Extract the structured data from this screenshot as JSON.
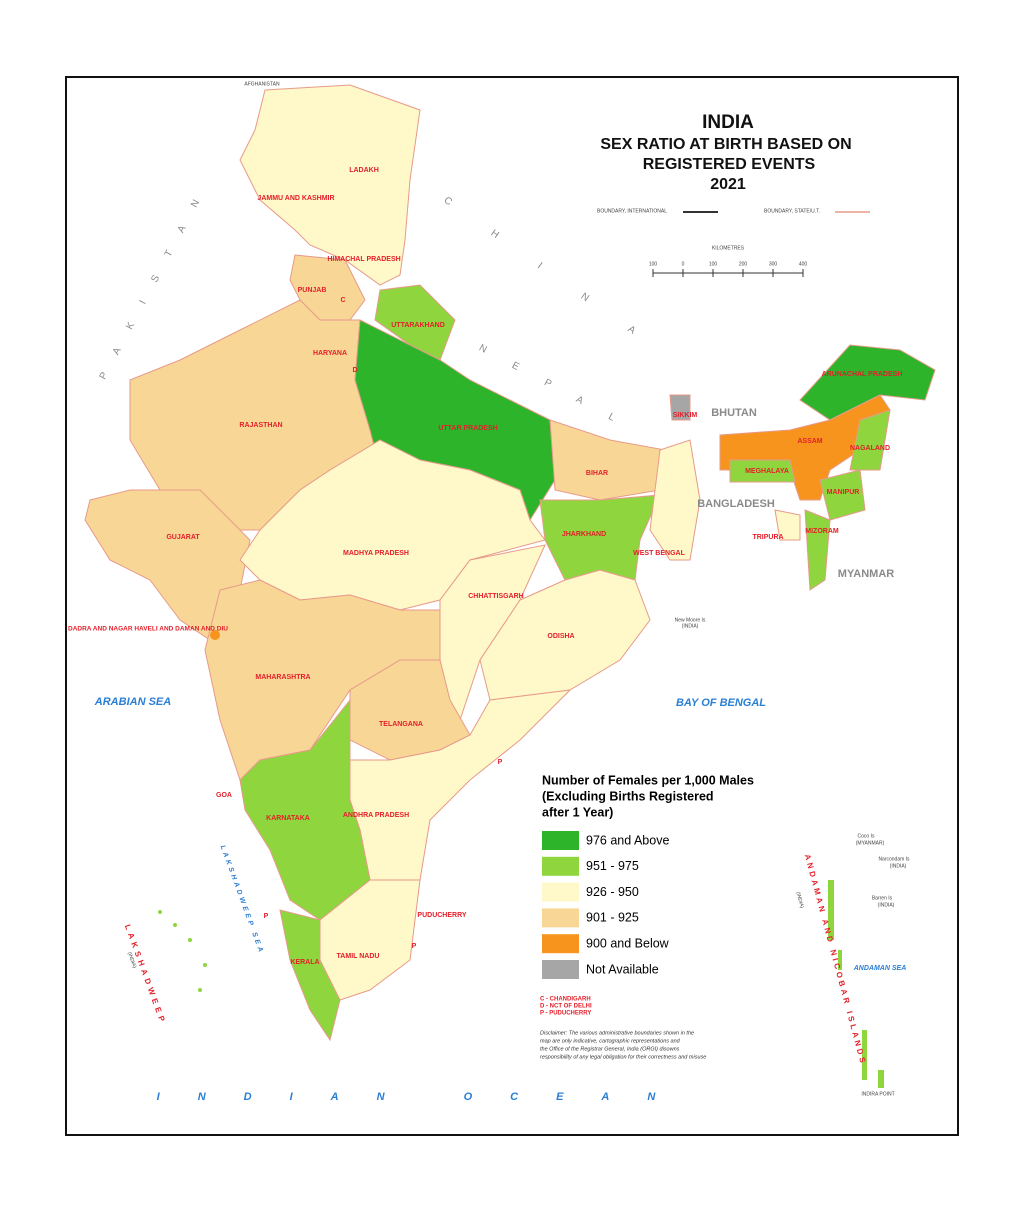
{
  "title": {
    "lines": [
      "INDIA",
      "SEX RATIO AT BIRTH BASED ON",
      "REGISTERED EVENTS",
      "2021"
    ]
  },
  "boundary_legend": {
    "international": "BOUNDARY, INTERNATIONAL",
    "state": "BOUNDARY, STATE/U.T."
  },
  "scale": {
    "unit": "KILOMETRES",
    "ticks": [
      "100",
      "0",
      "100",
      "200",
      "300",
      "400"
    ]
  },
  "legend": {
    "title_lines": [
      "Number of Females per 1,000 Males",
      "(Excluding Births Registered",
      "after 1 Year)"
    ],
    "items": [
      {
        "label": "976 and Above",
        "color": "#2db42b"
      },
      {
        "label": "951 - 975",
        "color": "#8fd63e"
      },
      {
        "label": "926 - 950",
        "color": "#fff8c8"
      },
      {
        "label": "901 - 925",
        "color": "#f8d796"
      },
      {
        "label": "900 and Below",
        "color": "#f7941d"
      },
      {
        "label": "Not Available",
        "color": "#a6a6a6"
      }
    ]
  },
  "states": [
    "LADAKH",
    "JAMMU AND KASHMIR",
    "HIMACHAL PRADESH",
    "PUNJAB",
    "UTTARAKHAND",
    "HARYANA",
    "RAJASTHAN",
    "UTTAR PRADESH",
    "BIHAR",
    "SIKKIM",
    "ARUNACHAL PRADESH",
    "ASSAM",
    "NAGALAND",
    "MEGHALAYA",
    "MANIPUR",
    "GUJARAT",
    "MADHYA PRADESH",
    "JHARKHAND",
    "WEST BENGAL",
    "TRIPURA",
    "MIZORAM",
    "CHHATTISGARH",
    "DADRA AND NAGAR HAVELI AND DAMAN AND DIU",
    "ODISHA",
    "MAHARASHTRA",
    "TELANGANA",
    "GOA",
    "KARNATAKA",
    "ANDHRA PRADESH",
    "PUDUCHERRY",
    "KERALA",
    "TAMIL NADU"
  ],
  "territory_marks": [
    "C",
    "D",
    "P",
    "P",
    "P"
  ],
  "neighbours": [
    "AFGHANISTAN",
    "PAKISTAN",
    "CHINA",
    "NEPAL",
    "BHUTAN",
    "BANGLADESH",
    "MYANMAR"
  ],
  "seas": [
    "ARABIAN SEA",
    "BAY OF BENGAL",
    "INDIAN OCEAN",
    "ANDAMAN SEA",
    "LAKSHADWEEP SEA"
  ],
  "islands": [
    "LAKSHADWEEP",
    "(INDIA)",
    "ANDAMAN AND NICOBAR ISLANDS",
    "(INDIA)",
    "Coco Is",
    "(MYANMAR)",
    "Narcondam Is",
    "(INDIA)",
    "Barren Is",
    "(INDIA)",
    "INDIRA POINT",
    "New Moore Is",
    "(INDIA)"
  ],
  "notes": [
    "C - CHANDIGARH",
    "D - NCT OF DELHI",
    "P - PUDUCHERRY"
  ],
  "disclaimer": [
    "Disclaimer: The various administrative boundaries shown in the",
    "map are only indicative, cartographic representations and",
    "the Office of the Registrar General, India (ORGI) disowns",
    "responsibility of any legal obligation for their correctness and misuse"
  ]
}
